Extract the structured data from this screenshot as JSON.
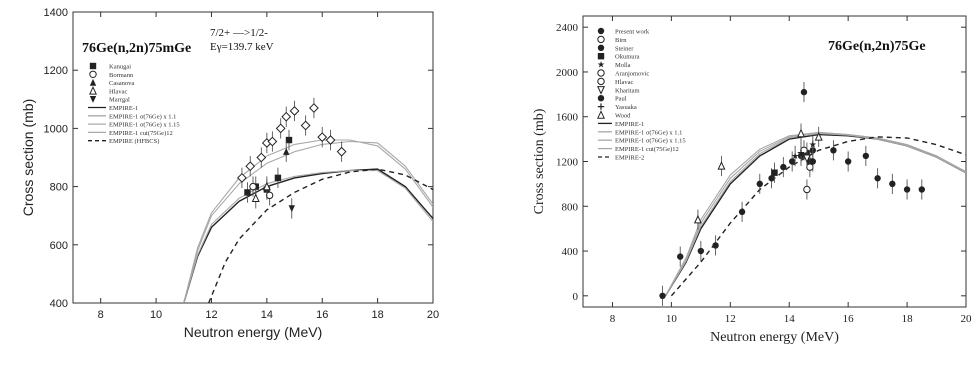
{
  "chart_data": [
    {
      "type": "scatter",
      "title": "76Ge(n,2n)75mGe",
      "annotations": [
        "7/2+ —>1/2-",
        "Eγ=139.7 keV"
      ],
      "xlabel": "Neutron energy (MeV)",
      "ylabel": "Cross section (mb)",
      "xlim": [
        7,
        20
      ],
      "ylim": [
        400,
        1400
      ],
      "xticks": [
        8,
        10,
        12,
        14,
        16,
        18,
        20
      ],
      "yticks": [
        400,
        600,
        800,
        1000,
        1200,
        1400
      ],
      "legend_position": "top-left",
      "series": [
        {
          "name": "Kanugai",
          "marker": "square",
          "x": [
            13.3,
            13.6,
            14.0,
            14.4,
            14.8
          ],
          "y": [
            780,
            800,
            790,
            830,
            960
          ]
        },
        {
          "name": "Bormann",
          "marker": "circle-open",
          "x": [
            13.5,
            14.1
          ],
          "y": [
            800,
            770
          ]
        },
        {
          "name": "Casanova",
          "marker": "triangle",
          "x": [
            14.7
          ],
          "y": [
            920
          ]
        },
        {
          "name": "Hlavac",
          "marker": "triangle-open",
          "x": [
            13.6,
            14.0
          ],
          "y": [
            760,
            800
          ]
        },
        {
          "name": "Marrgal",
          "marker": "triangle-down",
          "x": [
            14.9
          ],
          "y": [
            725
          ]
        },
        {
          "name": "",
          "marker": "diamond-open",
          "x": [
            13.1,
            13.4,
            13.8,
            14.0,
            14.2,
            14.5,
            14.7,
            15.0,
            15.4,
            15.7,
            16.0,
            16.3,
            16.7
          ],
          "y": [
            830,
            870,
            900,
            950,
            955,
            1000,
            1040,
            1060,
            1010,
            1070,
            970,
            960,
            920
          ]
        },
        {
          "name": "EMPIRE-1",
          "line": "solid",
          "x": [
            11.0,
            11.5,
            12.0,
            13.0,
            14.0,
            15.0,
            16.0,
            17.0,
            18.0,
            19.0,
            20.0
          ],
          "y": [
            400,
            560,
            660,
            750,
            800,
            830,
            845,
            855,
            860,
            800,
            690
          ]
        },
        {
          "name": "EMPIRE-1 σ(76Ge) x 1.1",
          "line": "solid-light",
          "x": [
            11.0,
            11.5,
            12.0,
            13.0,
            14.0,
            15.0,
            16.0,
            17.0,
            18.0,
            19.0,
            20.0
          ],
          "y": [
            400,
            580,
            700,
            810,
            880,
            920,
            945,
            955,
            950,
            870,
            740
          ]
        },
        {
          "name": "EMPIRE-1 σ(76Ge) x 1.15",
          "line": "solid-light",
          "x": [
            11.0,
            11.5,
            12.0,
            13.0,
            14.0,
            15.0,
            16.0,
            17.0,
            18.0,
            19.0,
            20.0
          ],
          "y": [
            400,
            590,
            710,
            830,
            905,
            945,
            960,
            960,
            940,
            860,
            730
          ]
        },
        {
          "name": "EMPIRE-1 cut(75Ge)12",
          "line": "solid-light",
          "x": [
            11.0,
            11.5,
            12.0,
            13.0,
            14.0,
            15.0,
            16.0,
            17.0,
            18.0,
            19.0,
            20.0
          ],
          "y": [
            400,
            565,
            670,
            760,
            810,
            835,
            848,
            855,
            855,
            795,
            680
          ]
        },
        {
          "name": "EMPIRE (HFBCS)",
          "line": "dashed",
          "x": [
            11.9,
            12.5,
            13.0,
            14.0,
            15.0,
            16.0,
            17.0,
            18.0,
            19.0,
            20.0
          ],
          "y": [
            400,
            540,
            620,
            720,
            780,
            825,
            850,
            860,
            840,
            790
          ]
        }
      ]
    },
    {
      "type": "scatter",
      "title": "76Ge(n,2n)75Ge",
      "xlabel": "Neutron energy (MeV)",
      "ylabel": "Cross section (mb)",
      "xlim": [
        7,
        20
      ],
      "ylim": [
        -100,
        2500
      ],
      "xticks": [
        8,
        10,
        12,
        14,
        16,
        18,
        20
      ],
      "yticks": [
        0,
        400,
        800,
        1200,
        1600,
        2000,
        2400
      ],
      "legend_position": "top-left",
      "series": [
        {
          "name": "Present work",
          "marker": "circle",
          "x": [
            9.7,
            10.3,
            11.0,
            11.5,
            12.4,
            13.0,
            13.4,
            13.8,
            14.1,
            14.4,
            14.6,
            14.8,
            15.5,
            16.0,
            16.6,
            17.0,
            17.5,
            18.0,
            18.5
          ],
          "y": [
            0,
            350,
            400,
            450,
            750,
            1000,
            1050,
            1150,
            1200,
            1250,
            1280,
            1300,
            1300,
            1200,
            1250,
            1050,
            1000,
            950,
            950
          ]
        },
        {
          "name": "Birn",
          "marker": "circle-open",
          "x": [
            14.6
          ],
          "y": [
            950
          ]
        },
        {
          "name": "Steiner",
          "marker": "circle",
          "x": [
            14.5
          ],
          "y": [
            1820
          ]
        },
        {
          "name": "Okumura",
          "marker": "square",
          "x": [
            13.5,
            14.7
          ],
          "y": [
            1100,
            1200
          ]
        },
        {
          "name": "Molla",
          "marker": "star",
          "x": [
            14.2,
            14.8
          ],
          "y": [
            1250,
            1350
          ]
        },
        {
          "name": "Aranjomovic",
          "marker": "circle-open",
          "x": [
            14.5
          ],
          "y": [
            1300
          ]
        },
        {
          "name": "Hlavac",
          "marker": "circle-open",
          "x": [
            14.7
          ],
          "y": [
            1150
          ]
        },
        {
          "name": "Kharitam",
          "marker": "triangle-down-open",
          "x": [
            14.6
          ],
          "y": [
            1230
          ]
        },
        {
          "name": "Paul",
          "marker": "circle",
          "x": [
            14.8
          ],
          "y": [
            1200
          ]
        },
        {
          "name": "Yasuaka",
          "marker": "plus",
          "x": [
            14.4
          ],
          "y": [
            1280
          ]
        },
        {
          "name": "Wood",
          "marker": "triangle-open",
          "x": [
            10.9,
            11.7,
            14.4,
            15.0
          ],
          "y": [
            680,
            1160,
            1450,
            1420
          ]
        },
        {
          "name": "EMPIRE-1",
          "line": "solid",
          "x": [
            9.8,
            10.5,
            11.0,
            12.0,
            13.0,
            14.0,
            15.0,
            16.0,
            17.0,
            18.0,
            19.0,
            20.0
          ],
          "y": [
            0,
            300,
            600,
            1000,
            1250,
            1400,
            1440,
            1430,
            1400,
            1340,
            1240,
            1100
          ]
        },
        {
          "name": "EMPIRE-1 σ(76Ge) x 1.1",
          "line": "solid-light",
          "x": [
            9.8,
            10.5,
            11.0,
            12.0,
            13.0,
            14.0,
            15.0,
            16.0,
            17.0,
            18.0,
            19.0,
            20.0
          ],
          "y": [
            0,
            320,
            650,
            1050,
            1290,
            1420,
            1460,
            1440,
            1410,
            1350,
            1250,
            1110
          ]
        },
        {
          "name": "EMPIRE-1 σ(76Ge) x 1.15",
          "line": "solid-light",
          "x": [
            9.8,
            10.5,
            11.0,
            12.0,
            13.0,
            14.0,
            15.0,
            16.0,
            17.0,
            18.0,
            19.0,
            20.0
          ],
          "y": [
            0,
            340,
            680,
            1080,
            1310,
            1430,
            1460,
            1440,
            1410,
            1350,
            1250,
            1100
          ]
        },
        {
          "name": "EMPIRE-1 cut(75Ge)12",
          "line": "solid-light",
          "x": [
            9.8,
            10.5,
            11.0,
            12.0,
            13.0,
            14.0,
            15.0,
            16.0,
            17.0,
            18.0,
            19.0,
            20.0
          ],
          "y": [
            0,
            310,
            620,
            1020,
            1270,
            1410,
            1450,
            1435,
            1400,
            1340,
            1240,
            1100
          ]
        },
        {
          "name": "EMPIRE-2",
          "line": "dashed",
          "x": [
            10.0,
            11.0,
            12.0,
            13.0,
            14.0,
            15.0,
            16.0,
            17.0,
            18.0,
            19.0,
            20.0
          ],
          "y": [
            0,
            300,
            650,
            950,
            1150,
            1300,
            1380,
            1420,
            1410,
            1350,
            1260
          ]
        }
      ]
    }
  ]
}
